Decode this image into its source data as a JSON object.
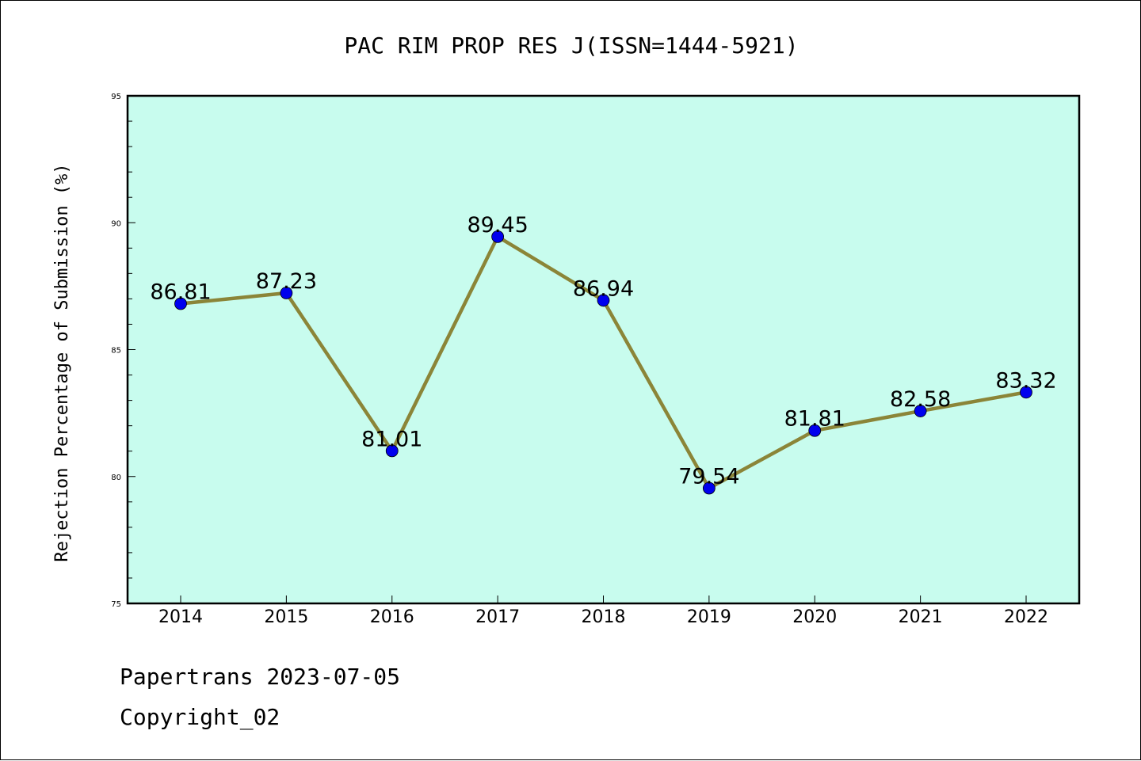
{
  "chart_data": {
    "type": "line",
    "title": "PAC RIM PROP RES J(ISSN=1444-5921)",
    "xlabel": "",
    "ylabel": "Rejection Percentage of Submission (%)",
    "categories": [
      "2014",
      "2015",
      "2016",
      "2017",
      "2018",
      "2019",
      "2020",
      "2021",
      "2022"
    ],
    "series": [
      {
        "values": [
          86.81,
          87.23,
          81.01,
          89.45,
          86.94,
          79.54,
          81.81,
          82.58,
          83.32
        ],
        "labels": [
          "86.81",
          "87.23",
          "81.01",
          "89.45",
          "86.94",
          "79.54",
          "81.81",
          "82.58",
          "83.32"
        ],
        "line_color": "#8b8538",
        "marker_color": "#0000ee"
      }
    ],
    "ylim": [
      75,
      95
    ],
    "yticks": [
      "75",
      "80",
      "85",
      "90",
      "95"
    ],
    "plot_background": "#c8fcee",
    "grid": false,
    "legend": "none"
  },
  "footer": {
    "line1": "Papertrans 2023-07-05",
    "line2": "Copyright_02"
  }
}
